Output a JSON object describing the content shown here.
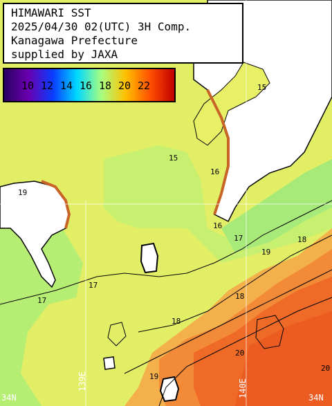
{
  "title": {
    "lines": [
      "HIMAWARI SST",
      "2025/04/30 02(UTC) 3H Comp.",
      "Kanagawa Prefecture",
      "supplied by JAXA"
    ]
  },
  "legend": {
    "ticks": [
      "10",
      "12",
      "14",
      "16",
      "18",
      "20",
      "22"
    ],
    "colors": [
      "#2a0060",
      "#6a00b0",
      "#0a3cff",
      "#00d8ff",
      "#a8ff80",
      "#ffc000",
      "#ff5000",
      "#c00000"
    ]
  },
  "palette": {
    "land": "#ffffff",
    "coast": "#000000",
    "sst_17": "#b8f078",
    "sst_18": "#e6f064",
    "sst_19": "#f2c850",
    "sst_20": "#f48838",
    "sst_21": "#ee6020",
    "cold_edge": "#d87030"
  },
  "contour_labels": [
    "17",
    "17",
    "17",
    "18",
    "18",
    "18",
    "19",
    "19",
    "19",
    "20",
    "20",
    "15",
    "15",
    "16",
    "16"
  ],
  "grid_labels": {
    "lat": "34N",
    "lat_right": "34N",
    "lon_west": "139E",
    "lon_east": "140E"
  }
}
